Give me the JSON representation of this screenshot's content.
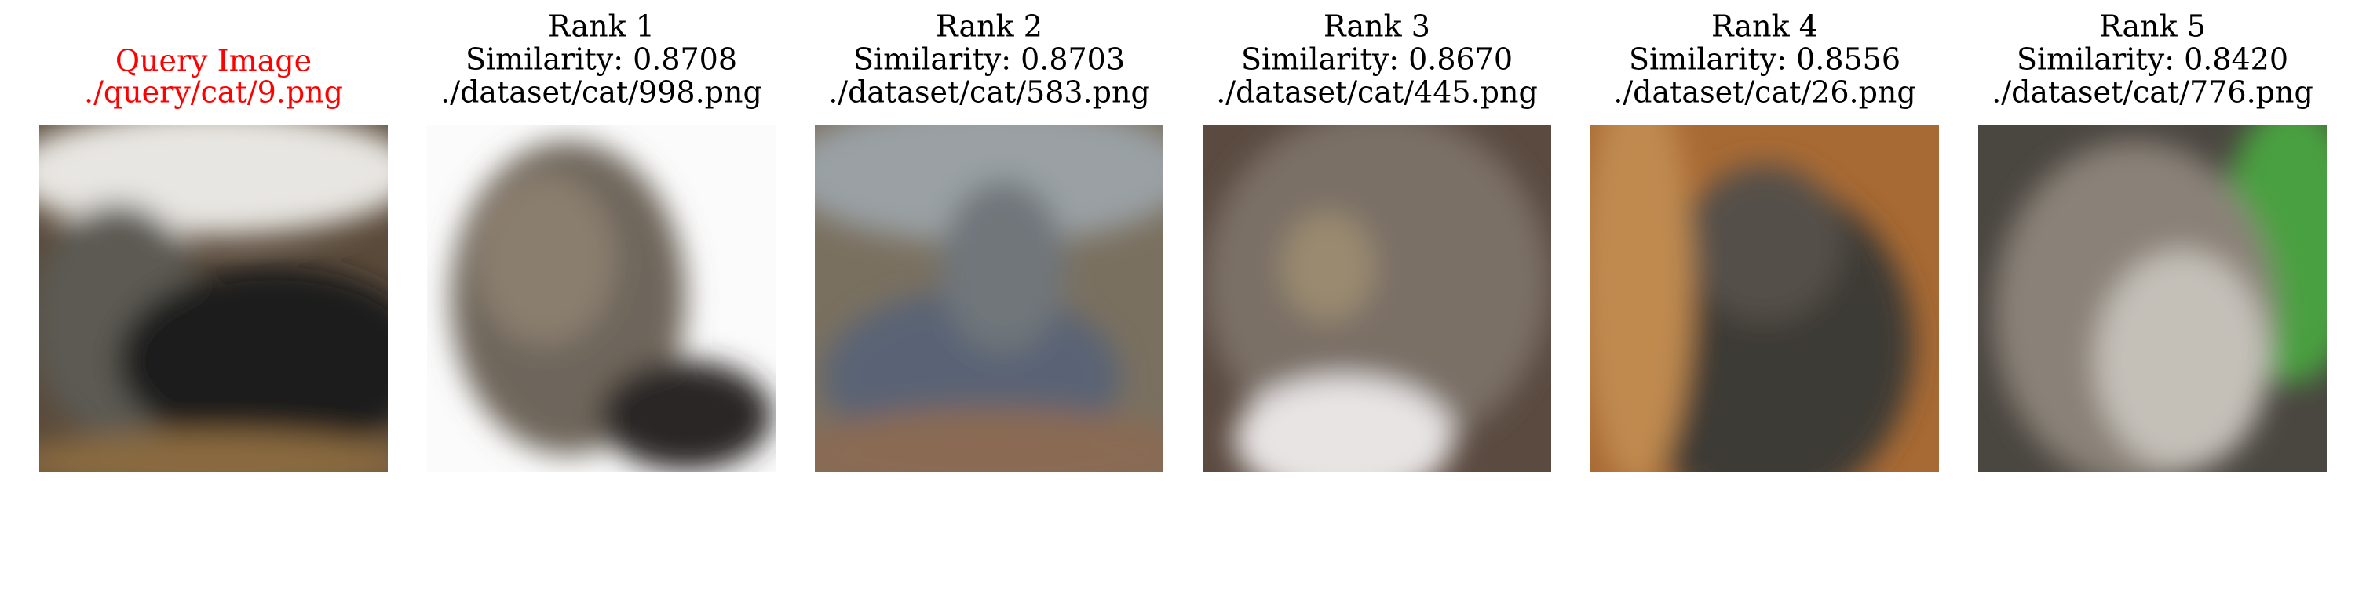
{
  "query": {
    "title": "Query Image",
    "path": "./query/cat/9.png"
  },
  "results": [
    {
      "rank": "Rank 1",
      "similarity": "Similarity: 0.8708",
      "path": "./dataset/cat/998.png"
    },
    {
      "rank": "Rank 2",
      "similarity": "Similarity: 0.8703",
      "path": "./dataset/cat/583.png"
    },
    {
      "rank": "Rank 3",
      "similarity": "Similarity: 0.8670",
      "path": "./dataset/cat/445.png"
    },
    {
      "rank": "Rank 4",
      "similarity": "Similarity: 0.8556",
      "path": "./dataset/cat/26.png"
    },
    {
      "rank": "Rank 5",
      "similarity": "Similarity: 0.8420",
      "path": "./dataset/cat/776.png"
    }
  ]
}
